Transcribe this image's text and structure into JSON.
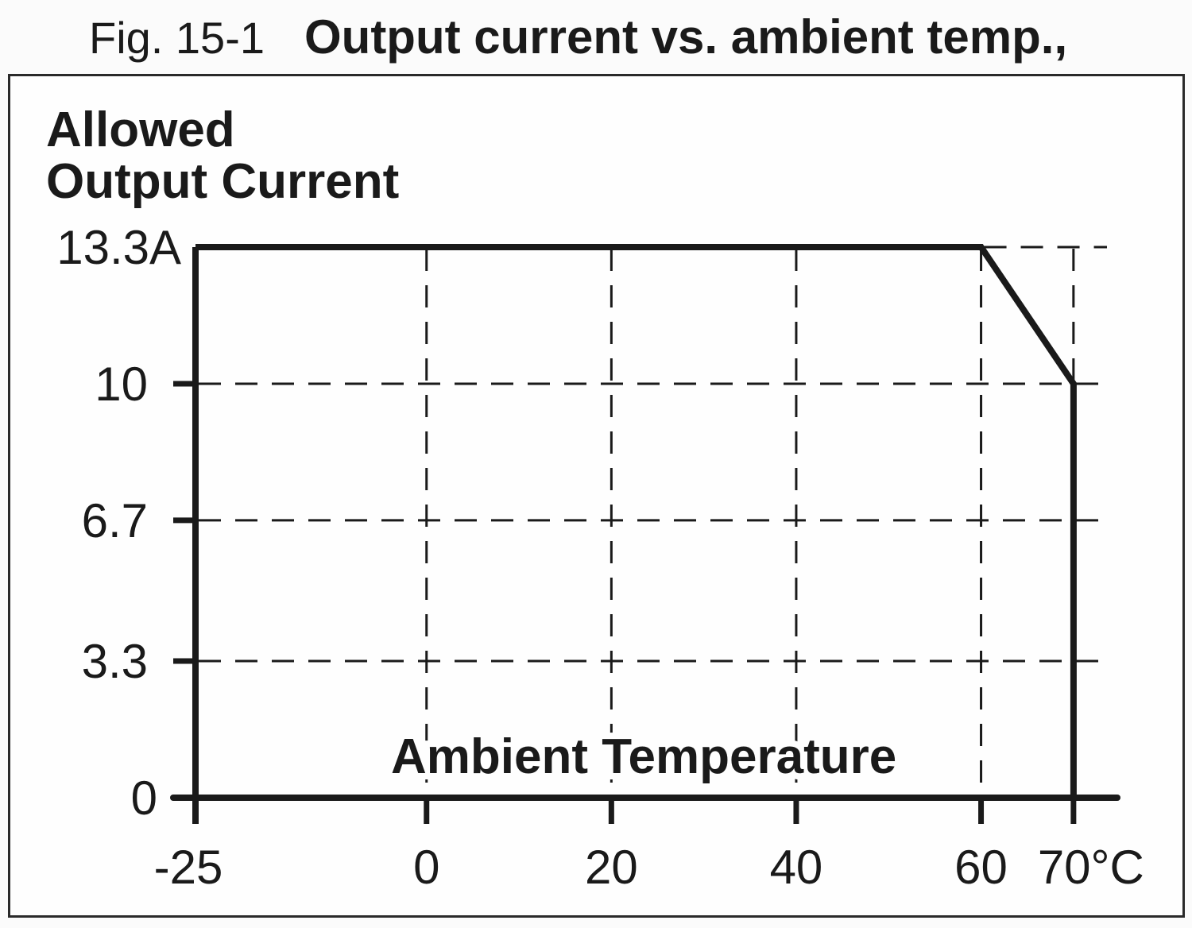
{
  "caption": {
    "figure_label": "Fig. 15-1",
    "title": "Output current vs. ambient temp.,"
  },
  "chart": {
    "y_axis_title_lines": [
      "Allowed",
      "Output Current"
    ],
    "x_axis_title": "Ambient Temperature"
  },
  "chart_data": {
    "type": "line",
    "title": "Fig. 15-1 Output current vs. ambient temp.,",
    "xlabel": "Ambient Temperature",
    "ylabel": "Allowed Output Current",
    "x_unit": "°C",
    "y_unit": "A",
    "xlim": [
      -25,
      75
    ],
    "ylim": [
      0,
      14
    ],
    "grid": "dashed",
    "legend": false,
    "x_ticks": [
      {
        "value": -25,
        "label": "-25"
      },
      {
        "value": 0,
        "label": "0"
      },
      {
        "value": 20,
        "label": "20"
      },
      {
        "value": 40,
        "label": "40"
      },
      {
        "value": 60,
        "label": "60"
      },
      {
        "value": 70,
        "label": "70°C"
      }
    ],
    "y_ticks": [
      {
        "value": 13.3,
        "label": "13.3A"
      },
      {
        "value": 10,
        "label": "10"
      },
      {
        "value": 6.7,
        "label": "6.7"
      },
      {
        "value": 3.3,
        "label": "3.3"
      },
      {
        "value": 0,
        "label": "0"
      }
    ],
    "gridlines": {
      "vertical_x": [
        0,
        20,
        40,
        60,
        70
      ],
      "horizontal_y": [
        {
          "y": 13.3,
          "from_x": 60
        },
        {
          "y": 10
        },
        {
          "y": 6.7
        },
        {
          "y": 3.3
        }
      ]
    },
    "series": [
      {
        "name": "Allowed output current",
        "points": [
          [
            -25,
            13.3
          ],
          [
            60,
            13.3
          ],
          [
            70,
            10
          ],
          [
            70,
            0
          ]
        ]
      }
    ]
  },
  "colors": {
    "ink": "#1a1a1a",
    "background": "#fbfbfb",
    "plot_background": "#fefefe"
  }
}
